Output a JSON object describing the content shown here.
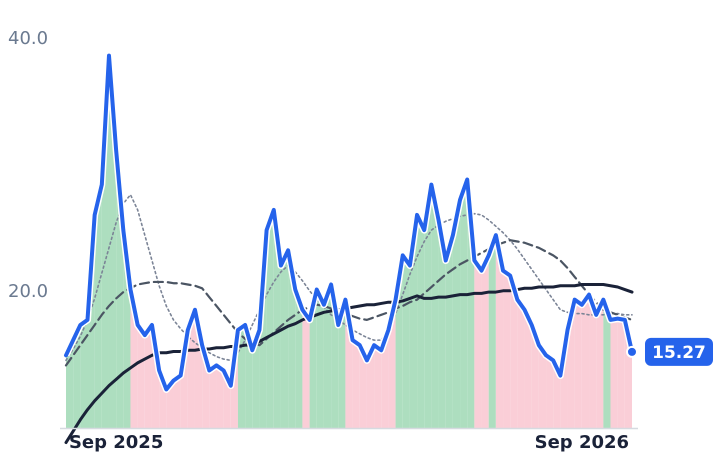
{
  "chart_data": {
    "type": "line",
    "categories": [
      null,
      null,
      null,
      null,
      null,
      null,
      null,
      "Sep 2025",
      null,
      null,
      null,
      null,
      null,
      null,
      null,
      null,
      null,
      null,
      null,
      null,
      null,
      null,
      null,
      null,
      null,
      null,
      null,
      null,
      null,
      null,
      null,
      null,
      null,
      null,
      null,
      null,
      null,
      null,
      null,
      null,
      null,
      null,
      null,
      null,
      null,
      null,
      null,
      null,
      null,
      null,
      null,
      null,
      null,
      null,
      null,
      null,
      null,
      null,
      null,
      null,
      null,
      null,
      null,
      null,
      null,
      null,
      null,
      null,
      null,
      null,
      null,
      null,
      "Sep 2026",
      null,
      null,
      null,
      null,
      null,
      null,
      null
    ],
    "ylim": [
      9.25,
      43.1
    ],
    "yticks": [
      {
        "value": 20,
        "label": "20.0"
      },
      {
        "value": 40,
        "label": "40.0"
      }
    ],
    "up_color": "#9fd8b4",
    "down_color": "#f9c6d0",
    "series": [
      {
        "color": "#2563eb",
        "width": 4,
        "dash": "none",
        "values": [
          15.0,
          16.2,
          17.4,
          17.8,
          26.1,
          28.5,
          38.7,
          31.2,
          24.9,
          20.2,
          17.4,
          16.6,
          17.4,
          13.8,
          12.3,
          13.0,
          13.4,
          17.0,
          18.6,
          15.8,
          13.8,
          14.2,
          13.8,
          12.6,
          17.0,
          17.4,
          15.4,
          17.0,
          24.9,
          26.5,
          22.1,
          23.3,
          20.2,
          18.6,
          17.8,
          20.2,
          19.0,
          20.6,
          17.4,
          19.4,
          16.2,
          15.8,
          14.6,
          15.8,
          15.4,
          17.0,
          19.4,
          22.9,
          22.1,
          26.1,
          24.9,
          28.5,
          25.7,
          22.5,
          24.5,
          27.3,
          28.9,
          22.5,
          21.7,
          22.9,
          24.5,
          21.7,
          21.3,
          19.4,
          18.6,
          17.4,
          15.8,
          15.0,
          14.6,
          13.4,
          17.0,
          19.4,
          19.0,
          19.8,
          18.2,
          19.4,
          17.8,
          17.9,
          17.8,
          15.27
        ],
        "value_labels": [
          null,
          null,
          null,
          null,
          null,
          null,
          null,
          null,
          null,
          null,
          null,
          null,
          null,
          null,
          null,
          null,
          null,
          null,
          null,
          null,
          null,
          null,
          null,
          null,
          null,
          null,
          null,
          null,
          null,
          null,
          null,
          null,
          null,
          null,
          null,
          null,
          null,
          null,
          null,
          null,
          null,
          null,
          null,
          null,
          null,
          null,
          null,
          null,
          null,
          null,
          null,
          null,
          null,
          null,
          null,
          null,
          null,
          null,
          null,
          null,
          null,
          null,
          null,
          null,
          null,
          null,
          null,
          null,
          null,
          null,
          null,
          null,
          null,
          null,
          null,
          null,
          null,
          null,
          null,
          "15.27"
        ]
      },
      {
        "color": "#1a2238",
        "width": 3,
        "dash": "none",
        "values": [
          8.1,
          9.0,
          9.9,
          10.7,
          11.4,
          12.0,
          12.6,
          13.1,
          13.6,
          14.0,
          14.4,
          14.7,
          15.0,
          15.2,
          15.2,
          15.3,
          15.3,
          15.4,
          15.4,
          15.5,
          15.5,
          15.6,
          15.6,
          15.7,
          15.7,
          15.8,
          15.8,
          16.1,
          16.4,
          16.7,
          17.0,
          17.3,
          17.5,
          17.8,
          18.0,
          18.2,
          18.4,
          18.5,
          18.6,
          18.7,
          18.8,
          18.9,
          19.0,
          19.0,
          19.1,
          19.2,
          19.2,
          19.3,
          19.5,
          19.7,
          19.5,
          19.5,
          19.6,
          19.6,
          19.7,
          19.8,
          19.8,
          19.9,
          19.9,
          20.0,
          20.0,
          20.1,
          20.1,
          20.2,
          20.3,
          20.3,
          20.4,
          20.4,
          20.4,
          20.5,
          20.5,
          20.5,
          20.6,
          20.6,
          20.6,
          20.6,
          20.5,
          20.4,
          20.2,
          20.0
        ]
      },
      {
        "color": "#4b5563",
        "width": 2.2,
        "dash": "9 5",
        "values": [
          14.2,
          15.0,
          15.8,
          16.6,
          17.4,
          18.2,
          18.9,
          19.5,
          20.0,
          20.3,
          20.6,
          20.7,
          20.8,
          20.8,
          20.8,
          20.7,
          20.7,
          20.6,
          20.5,
          20.3,
          19.6,
          18.9,
          18.2,
          17.5,
          16.8,
          16.3,
          16.0,
          15.8,
          16.3,
          16.8,
          17.3,
          17.8,
          18.2,
          18.6,
          18.8,
          19.0,
          18.9,
          18.7,
          18.5,
          18.3,
          18.1,
          17.9,
          17.8,
          18.0,
          18.2,
          18.4,
          18.7,
          18.9,
          19.2,
          19.4,
          19.9,
          20.4,
          20.9,
          21.4,
          21.8,
          22.2,
          22.5,
          22.8,
          23.1,
          23.4,
          23.7,
          23.9,
          24.1,
          24.0,
          23.9,
          23.7,
          23.5,
          23.2,
          22.9,
          22.5,
          21.9,
          21.2,
          20.5,
          19.8,
          19.2,
          18.6,
          18.4,
          18.2,
          18.0,
          17.8
        ]
      },
      {
        "color": "#7b8496",
        "width": 1.6,
        "dash": "2 3",
        "values": [
          14.6,
          15.5,
          16.5,
          17.8,
          19.5,
          21.5,
          23.5,
          25.5,
          27.0,
          27.7,
          26.5,
          24.5,
          22.5,
          20.5,
          18.9,
          17.8,
          17.1,
          16.5,
          16.0,
          15.6,
          15.2,
          14.9,
          14.7,
          14.6,
          15.2,
          16.2,
          17.4,
          18.6,
          19.8,
          20.8,
          21.6,
          22.1,
          21.6,
          20.9,
          20.1,
          19.4,
          18.8,
          18.2,
          17.8,
          17.4,
          17.0,
          16.7,
          16.4,
          16.2,
          16.2,
          17.0,
          18.3,
          19.8,
          21.4,
          22.8,
          24.0,
          24.9,
          25.3,
          25.6,
          25.8,
          26.0,
          26.1,
          26.2,
          26.1,
          25.7,
          25.2,
          24.7,
          24.1,
          23.4,
          22.6,
          21.8,
          21.0,
          20.2,
          19.4,
          18.6,
          18.4,
          18.3,
          18.3,
          18.2,
          18.2,
          18.2,
          18.3,
          18.3,
          18.2,
          18.2
        ]
      }
    ]
  }
}
